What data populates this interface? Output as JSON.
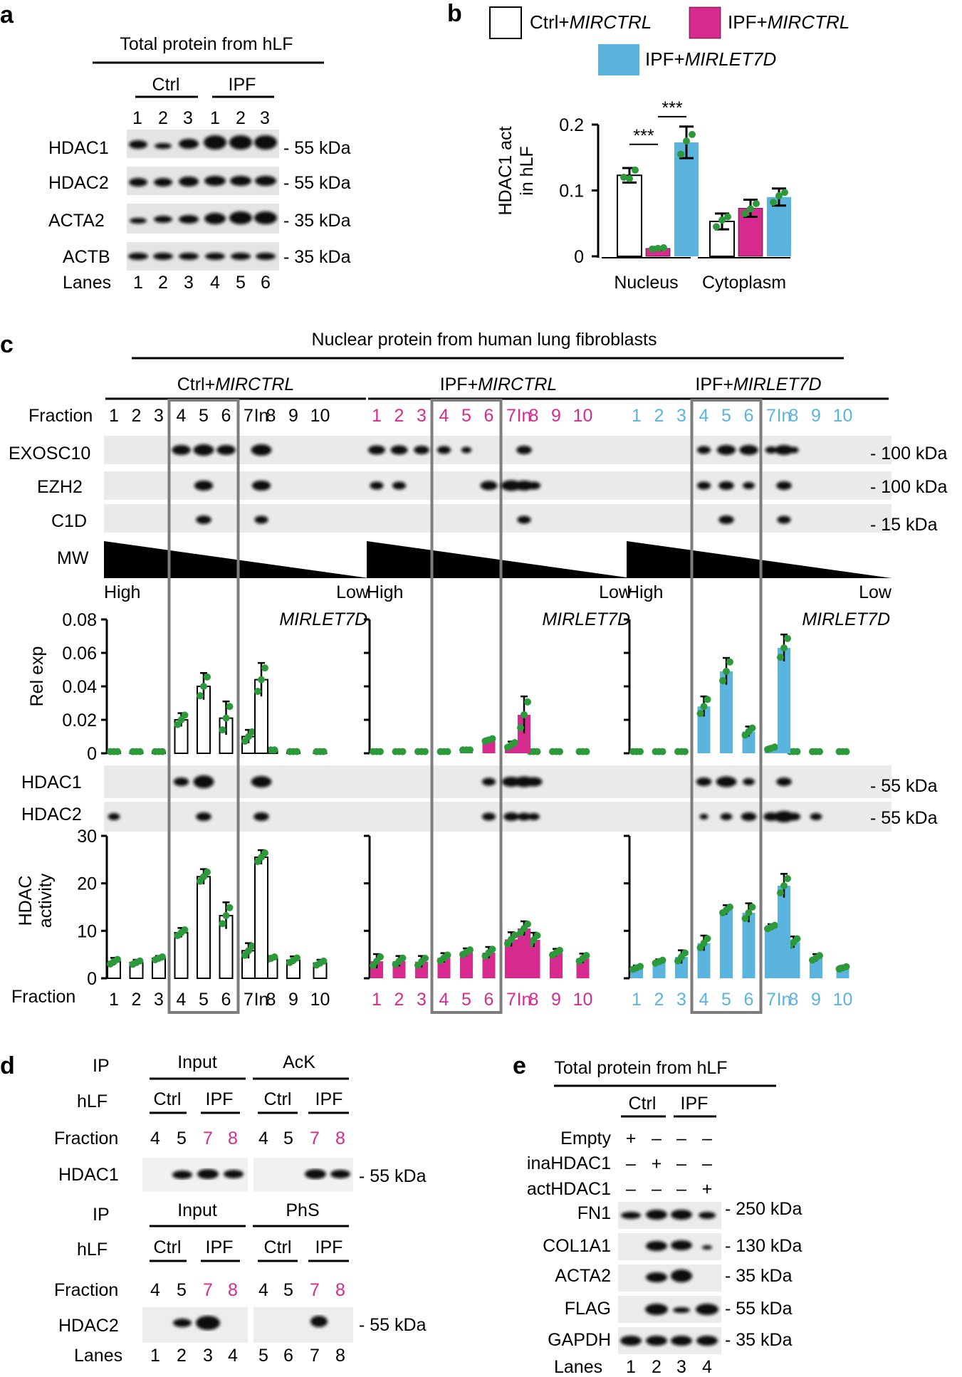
{
  "colors": {
    "ctrl": "#ffffff",
    "ipf": "#d62a8e",
    "let7d": "#5bb4dd",
    "dot": "#2c9a3a",
    "box": "#7d7d7d"
  },
  "panel_a": {
    "letter": "a",
    "title": "Total protein from hLF",
    "groups": [
      "Ctrl",
      "IPF"
    ],
    "sample_numbers": [
      "1",
      "2",
      "3",
      "1",
      "2",
      "3"
    ],
    "blots": [
      "HDAC1",
      "HDAC2",
      "ACTA2",
      "ACTB"
    ],
    "sizes": [
      "- 55 kDa",
      "- 55 kDa",
      "- 35 kDa",
      "- 35 kDa"
    ],
    "lanes_label": "Lanes",
    "lanes": [
      "1",
      "2",
      "3",
      "4",
      "5",
      "6"
    ]
  },
  "panel_b": {
    "letter": "b",
    "ylabel_line1": "HDAC1 act",
    "ylabel_line2": "in hLF",
    "legend": [
      {
        "prefix": "Ctrl+",
        "gene": "MIRCTRL"
      },
      {
        "prefix": "IPF+",
        "gene": "MIRCTRL"
      },
      {
        "prefix": "IPF+",
        "gene": "MIRLET7D"
      }
    ],
    "significance": [
      "***",
      "***"
    ]
  },
  "panel_c": {
    "letter": "c",
    "title": "Nuclear protein from human lung fibroblasts",
    "conditions": [
      {
        "prefix": "Ctrl+",
        "gene": "MIRCTRL"
      },
      {
        "prefix": "IPF+",
        "gene": "MIRCTRL"
      },
      {
        "prefix": "IPF+",
        "gene": "MIRLET7D"
      }
    ],
    "fraction_label": "Fraction",
    "fractions": [
      "1",
      "2",
      "3",
      "4",
      "5",
      "6",
      "7",
      "8",
      "9",
      "10",
      "In"
    ],
    "blots_top": [
      "EXOSC10",
      "EZH2",
      "C1D"
    ],
    "sizes_top": [
      "- 100 kDa",
      "- 100 kDa",
      "- 15 kDa"
    ],
    "mw_label": "MW",
    "high_label": "High",
    "low_label": "Low",
    "gene_label": "MIRLET7D",
    "relexp_label": "Rel exp",
    "blots_mid": [
      "HDAC1",
      "HDAC2"
    ],
    "sizes_mid": [
      "- 55 kDa",
      "- 55 kDa"
    ],
    "hdac_label_line1": "HDAC",
    "hdac_label_line2": "activity"
  },
  "panel_d": {
    "letter": "d",
    "ip_label": "IP",
    "hlf_label": "hLF",
    "fraction_label": "Fraction",
    "ip1": [
      "Input",
      "AcK"
    ],
    "ip2": [
      "Input",
      "PhS"
    ],
    "groups": [
      "Ctrl",
      "IPF",
      "Ctrl",
      "IPF"
    ],
    "fractions": [
      "4",
      "5",
      "7",
      "8",
      "4",
      "5",
      "7",
      "8"
    ],
    "blot1": "HDAC1",
    "blot2": "HDAC2",
    "size1": "- 55 kDa",
    "size2": "- 55 kDa",
    "lanes_label": "Lanes",
    "lanes": [
      "1",
      "2",
      "3",
      "4",
      "5",
      "6",
      "7",
      "8"
    ]
  },
  "panel_e": {
    "letter": "e",
    "title": "Total protein from hLF",
    "groups": [
      "Ctrl",
      "IPF"
    ],
    "conditions": [
      {
        "label": "Empty",
        "signs": [
          "+",
          "–",
          "–",
          "–"
        ]
      },
      {
        "label": "inaHDAC1",
        "signs": [
          "–",
          "+",
          "–",
          "–"
        ]
      },
      {
        "label": "actHDAC1",
        "signs": [
          "–",
          "–",
          "–",
          "+"
        ]
      }
    ],
    "blots": [
      "FN1",
      "COL1A1",
      "ACTA2",
      "FLAG",
      "GAPDH"
    ],
    "sizes": [
      "- 250 kDa",
      "- 130 kDa",
      "- 35 kDa",
      "- 55 kDa",
      "- 35 kDa"
    ],
    "lanes_label": "Lanes",
    "lanes": [
      "1",
      "2",
      "3",
      "4"
    ]
  },
  "chart_data": [
    {
      "type": "bar",
      "panel": "b",
      "title": "",
      "xlabel": "",
      "ylabel": "HDAC1 act in hLF",
      "categories": [
        "Nucleus",
        "Cytoplasm"
      ],
      "ylim": [
        0,
        0.2
      ],
      "yticks": [
        0,
        0.1,
        0.2
      ],
      "ytick_labels": [
        "0",
        "0.1",
        "0.2"
      ],
      "series": [
        {
          "name": "Ctrl+MIRCTRL",
          "values": [
            0.123,
            0.053
          ],
          "errors": [
            0.011,
            0.012
          ],
          "points": [
            [
              0.12,
              0.118,
              0.131
            ],
            [
              0.045,
              0.055,
              0.06
            ]
          ]
        },
        {
          "name": "IPF+MIRCTRL",
          "values": [
            0.012,
            0.073
          ],
          "errors": [
            0.002,
            0.013
          ],
          "points": [
            [
              0.011,
              0.012,
              0.013
            ],
            [
              0.065,
              0.072,
              0.08
            ]
          ]
        },
        {
          "name": "IPF+MIRLET7D",
          "values": [
            0.173,
            0.09
          ],
          "errors": [
            0.024,
            0.013
          ],
          "points": [
            [
              0.155,
              0.175,
              0.185
            ],
            [
              0.082,
              0.092,
              0.097
            ]
          ]
        }
      ]
    },
    {
      "type": "bar",
      "panel": "c",
      "ylabel": "Rel exp",
      "ylim": [
        0,
        0.08
      ],
      "yticks": [
        0,
        0.02,
        0.04,
        0.06,
        0.08
      ],
      "ytick_labels": [
        "0",
        "0.02",
        "0.04",
        "0.06",
        "0.08"
      ],
      "categories": [
        "1",
        "2",
        "3",
        "4",
        "5",
        "6",
        "7",
        "8",
        "9",
        "10",
        "In"
      ],
      "series": [
        {
          "name": "Ctrl+MIRCTRL",
          "values": [
            0.001,
            0.001,
            0.001,
            0.02,
            0.04,
            0.021,
            0.01,
            0.002,
            0.001,
            0.001,
            0.044
          ],
          "errors": [
            0,
            0,
            0,
            0.004,
            0.008,
            0.01,
            0.004,
            0,
            0,
            0,
            0.01
          ]
        },
        {
          "name": "IPF+MIRCTRL",
          "values": [
            0.001,
            0.001,
            0.001,
            0.001,
            0.002,
            0.008,
            0.005,
            0.001,
            0.001,
            0.001,
            0.023
          ],
          "errors": [
            0,
            0,
            0,
            0,
            0,
            0.001,
            0.002,
            0,
            0,
            0,
            0.011
          ]
        },
        {
          "name": "IPF+MIRLET7D",
          "values": [
            0.001,
            0.001,
            0.001,
            0.028,
            0.049,
            0.013,
            0.003,
            0.001,
            0.001,
            0.001,
            0.063
          ],
          "errors": [
            0,
            0,
            0,
            0.006,
            0.008,
            0.003,
            0.001,
            0,
            0,
            0,
            0.008
          ]
        }
      ]
    },
    {
      "type": "bar",
      "panel": "c",
      "ylabel": "HDAC activity",
      "xlabel": "Fraction",
      "ylim": [
        0,
        30
      ],
      "yticks": [
        0,
        10,
        20,
        30
      ],
      "ytick_labels": [
        "0",
        "10",
        "20",
        "30"
      ],
      "categories": [
        "1",
        "2",
        "3",
        "4",
        "5",
        "6",
        "7",
        "8",
        "9",
        "10",
        "In"
      ],
      "series": [
        {
          "name": "Ctrl+MIRCTRL",
          "values": [
            3.5,
            3.3,
            4.2,
            9.6,
            21.4,
            13.2,
            5.8,
            4.2,
            3.8,
            3.2,
            25.5
          ],
          "errors": [
            0.8,
            0.6,
            0.5,
            1.0,
            1.6,
            2.8,
            1.6,
            0.5,
            0.8,
            0.7,
            1.5
          ]
        },
        {
          "name": "IPF+MIRCTRL",
          "values": [
            3.6,
            3.6,
            3.5,
            4.3,
            5.5,
            5.4,
            8.2,
            8.1,
            5.4,
            4.2,
            10.5
          ],
          "errors": [
            1.5,
            1.1,
            1.2,
            1.0,
            0.8,
            1.2,
            1.5,
            1.5,
            0.8,
            1.0,
            1.5
          ]
        },
        {
          "name": "IPF+MIRLET7D",
          "values": [
            2.2,
            3.5,
            4.5,
            7.4,
            14.4,
            13.8,
            10.8,
            7.6,
            4.3,
            2.2,
            19.5
          ],
          "errors": [
            0.5,
            0.5,
            1.4,
            1.6,
            1.0,
            2.0,
            0.6,
            1.2,
            0.8,
            0.4,
            2.5
          ]
        }
      ]
    }
  ]
}
